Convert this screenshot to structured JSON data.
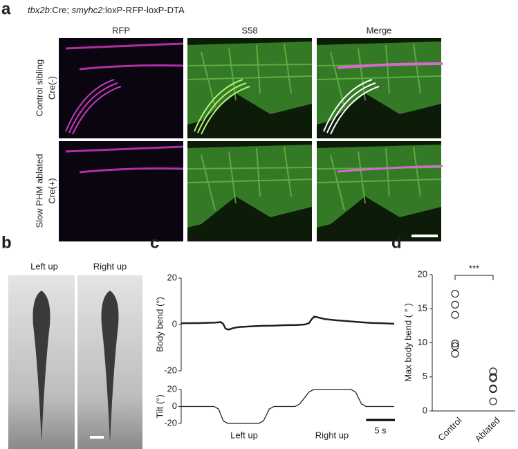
{
  "panel_a": {
    "label": "a",
    "genotype": [
      "tbx2b",
      ":Cre; ",
      "smyhc2",
      ":loxP-RFP-loxP-DTA"
    ],
    "columns": [
      "RFP",
      "S58",
      "Merge"
    ],
    "rows": [
      [
        "Control sibling",
        "Cre(-)"
      ],
      [
        "Slow PHM ablated",
        "Cre(+)"
      ]
    ]
  },
  "panel_b": {
    "label": "b",
    "columns": [
      "Left up",
      "Right up"
    ]
  },
  "chart_data": [
    {
      "type": "line",
      "panel": "c",
      "ylabel": "Body bend (°)",
      "color": "#231f20",
      "x": [
        0,
        3,
        6,
        6.9,
        7.3,
        7.7,
        8.2,
        9,
        10,
        12,
        14,
        16,
        18,
        20,
        21.5,
        22.2,
        22.7,
        23.1,
        23.8,
        25,
        27,
        29,
        31,
        33,
        35,
        37
      ],
      "values": [
        0.5,
        0.6,
        0.8,
        1.0,
        0.2,
        -1.8,
        -2.2,
        -1.6,
        -1.1,
        -0.8,
        -0.6,
        -0.5,
        -0.3,
        -0.2,
        0,
        0.6,
        2.4,
        3.4,
        3.0,
        2.3,
        1.8,
        1.4,
        1.0,
        0.7,
        0.5,
        0.3
      ],
      "xlim": [
        0,
        37
      ],
      "ylim": [
        -20,
        20
      ],
      "yticks": [
        20,
        0,
        -20
      ]
    },
    {
      "type": "line",
      "ylabel": "Tilt (°)",
      "color": "#231f20",
      "x": [
        0,
        5.7,
        6.5,
        7.3,
        8.1,
        13.5,
        14.3,
        15.3,
        16.1,
        19.8,
        20.6,
        22.2,
        23,
        29.5,
        30.3,
        31.3,
        32.1,
        37
      ],
      "values": [
        0,
        0,
        -3,
        -17,
        -20,
        -20,
        -17,
        -3,
        0,
        0,
        3,
        17,
        20,
        20,
        17,
        3,
        0,
        0
      ],
      "xlim": [
        0,
        37
      ],
      "ylim": [
        -20,
        20
      ],
      "yticks": [
        20,
        0,
        -20
      ],
      "annotations": [
        "Left up",
        "Right up"
      ],
      "scale_bar": {
        "value": 5,
        "label": "5 s"
      }
    },
    {
      "type": "strip",
      "panel": "d",
      "ylabel": "Max body bend ( ° )",
      "color": "#231f20",
      "categories": [
        "Control",
        "Ablated"
      ],
      "values": [
        [
          17.2,
          15.6,
          14.1,
          9.9,
          9.5,
          8.4
        ],
        [
          5.8,
          5.0,
          4.8,
          3.3,
          3.2,
          1.4
        ]
      ],
      "ylim": [
        0,
        20
      ],
      "yticks": [
        0,
        5,
        10,
        15,
        20
      ],
      "annotation": "***"
    }
  ]
}
